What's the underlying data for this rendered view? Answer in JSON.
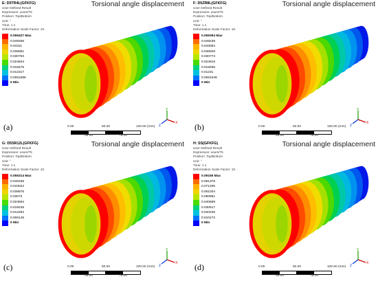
{
  "heading": "Torsional angle displacement",
  "meta_lines": [
    "User Defined Result",
    "Expression: usum/75",
    "Position: Top/Bottom",
    "Unit: °",
    "Time: 1 s",
    "Deformation Scale Factor: 10."
  ],
  "scale": {
    "labels": [
      "0.00",
      "50.00",
      "100.00 (mm)",
      "25.00",
      "75.00"
    ]
  },
  "triad": {
    "y": "Y",
    "x": "X",
    "z": "Z"
  },
  "colors": {
    "legend": [
      "#ff0000",
      "#ff6a00",
      "#ffb400",
      "#eed600",
      "#b7e600",
      "#47dc00",
      "#00d27f",
      "#00c2e0",
      "#0072ff",
      "#0000ff"
    ],
    "shell_bands": [
      "#ff0000",
      "#ff4a00",
      "#ff8d00",
      "#ffbe00",
      "#f0dc00",
      "#a6e000",
      "#4cd800",
      "#00d050",
      "#00c8a8",
      "#00b8e0",
      "#0092f0",
      "#0058ee",
      "#0018e8"
    ]
  },
  "panels": [
    {
      "title": "E: D5TR4L(GFKFG)",
      "label": "(a)",
      "legend": [
        "0.055427 Max",
        "0.049268",
        "0.04311",
        "0.036951",
        "0.030793",
        "0.024634",
        "0.018476",
        "0.012317",
        "0.0061586",
        "0 Min"
      ]
    },
    {
      "title": "F: D5ZR8L(GFKFG)",
      "label": "(b)",
      "legend": [
        "0.055394 Max",
        "0.049239",
        "0.043084",
        "0.036929",
        "0.030774",
        "0.024619",
        "0.018465",
        "0.01231",
        "0.0061549",
        "0 Min"
      ]
    },
    {
      "title": "G: D5SR12L(GFKFG)",
      "label": "(c)",
      "legend": [
        "0.055314 Max",
        "0.049168",
        "0.043022",
        "0.036876",
        "0.03073",
        "0.024584",
        "0.018438",
        "0.012292",
        "0.006146",
        "0 Min"
      ]
    },
    {
      "title": "H: SS(GFKFG)",
      "label": "(d)",
      "legend": [
        "0.09155 Max",
        "0.081378",
        "0.071206",
        "0.061034",
        "0.050861",
        "0.040689",
        "0.030517",
        "0.020345",
        "0.010172",
        "0 Min"
      ]
    }
  ]
}
